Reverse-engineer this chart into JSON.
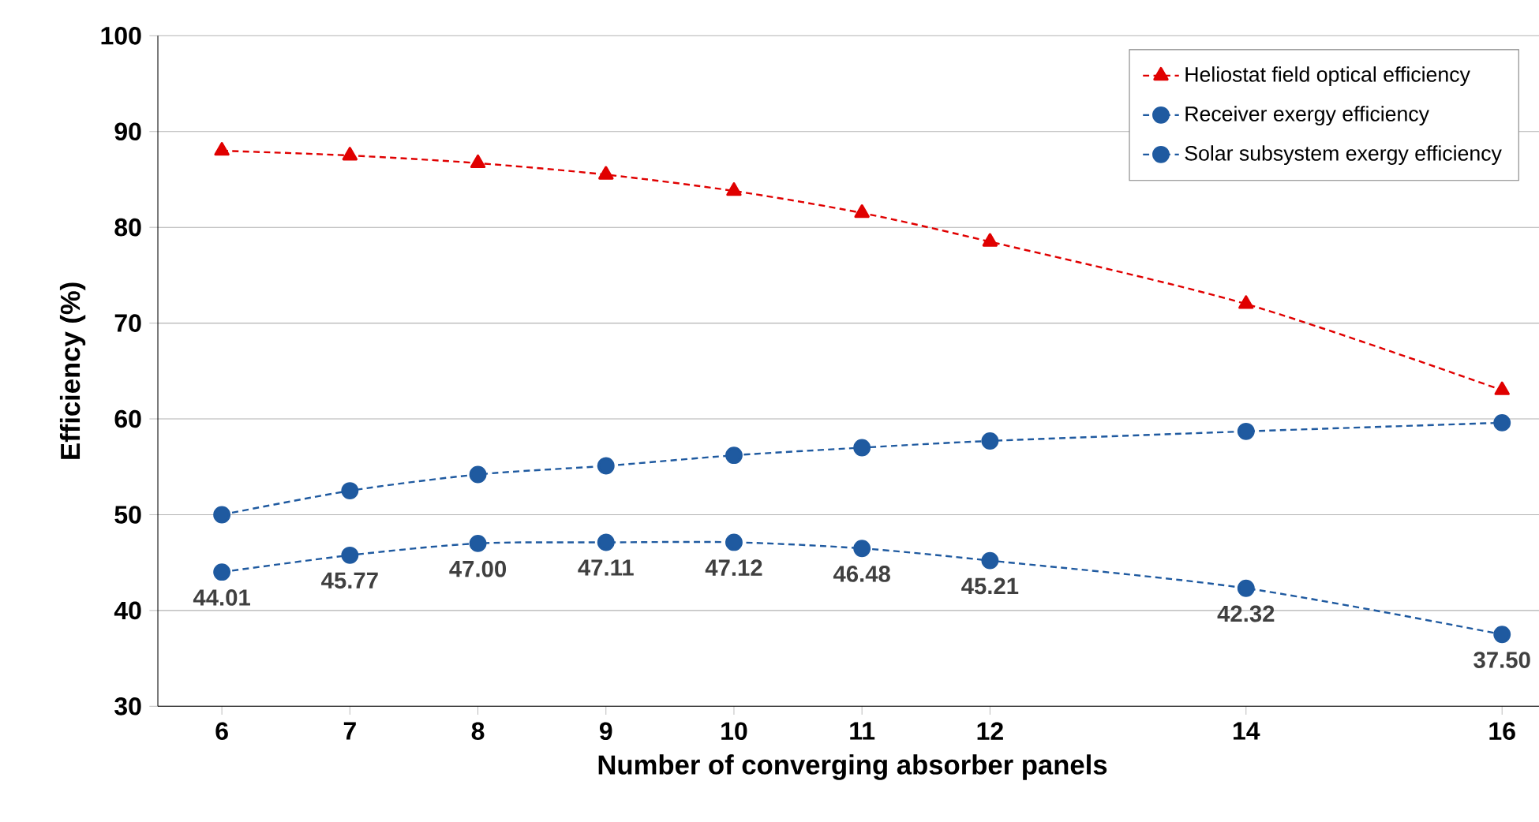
{
  "chart_data": {
    "type": "line",
    "xlabel": "Number of converging absorber panels",
    "ylabel": "Efficiency (%)",
    "x": [
      6,
      7,
      8,
      9,
      10,
      11,
      12,
      14,
      16
    ],
    "xlim": [
      5.5,
      16.35
    ],
    "xticks": [
      6,
      7,
      8,
      9,
      10,
      11,
      12,
      14,
      16
    ],
    "ylim": [
      30,
      100
    ],
    "yticks": [
      30,
      40,
      50,
      60,
      70,
      80,
      90,
      100
    ],
    "grid": "y",
    "legend": "top right",
    "line_style": "dashed",
    "series": [
      {
        "name": "Heliostat field optical efficiency",
        "color": "#e00000",
        "marker": "triangle",
        "values": [
          88,
          87.5,
          86.7,
          85.5,
          83.8,
          81.5,
          78.5,
          72,
          63
        ]
      },
      {
        "name": "Receiver exergy efficiency",
        "color": "#1f5aa0",
        "marker": "circle",
        "values": [
          50,
          52.5,
          54.2,
          55.1,
          56.2,
          57,
          57.7,
          58.7,
          59.6
        ]
      },
      {
        "name": "Solar subsystem exergy efficiency",
        "color": "#1f5aa0",
        "marker": "circle",
        "values": [
          44.01,
          45.77,
          47.0,
          47.11,
          47.12,
          46.48,
          45.21,
          42.32,
          37.5
        ],
        "value_labels": [
          "44.01",
          "45.77",
          "47.00",
          "47.11",
          "47.12",
          "46.48",
          "45.21",
          "42.32",
          "37.50"
        ]
      }
    ]
  }
}
